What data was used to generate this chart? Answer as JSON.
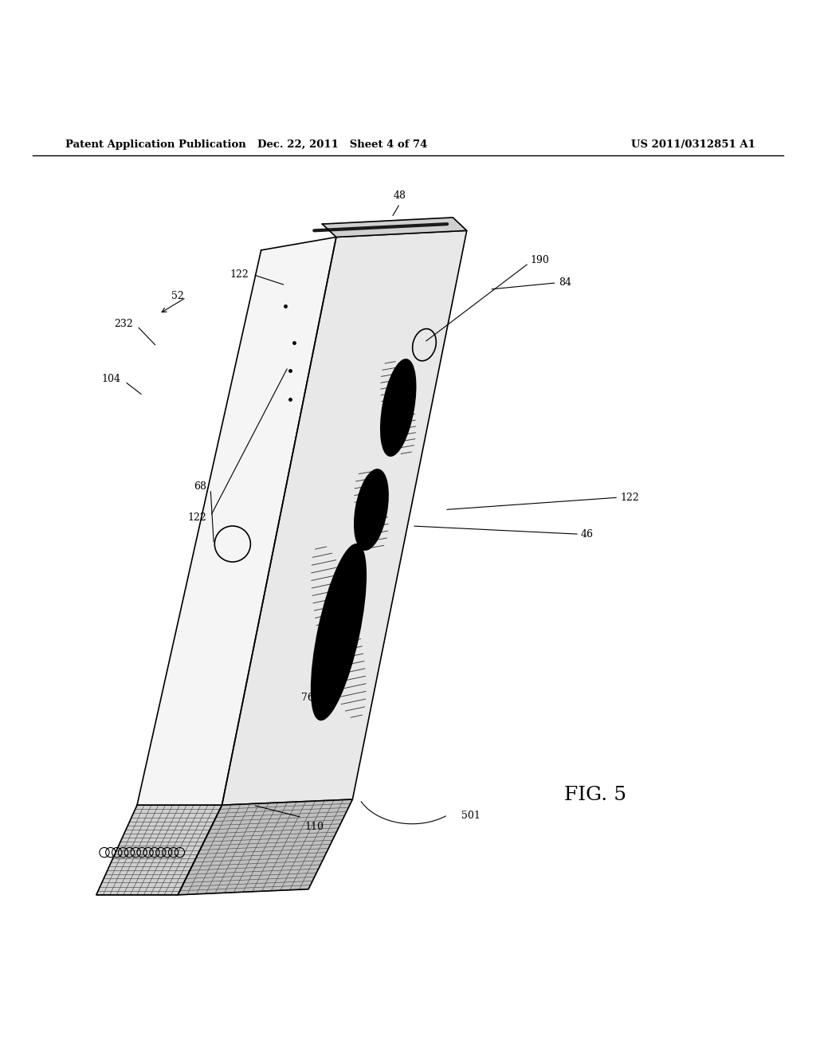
{
  "background_color": "#ffffff",
  "line_color": "#000000",
  "header_left": "Patent Application Publication",
  "header_mid": "Dec. 22, 2011   Sheet 4 of 74",
  "header_right": "US 2011/0312851 A1",
  "fig_label": "FIG. 5"
}
